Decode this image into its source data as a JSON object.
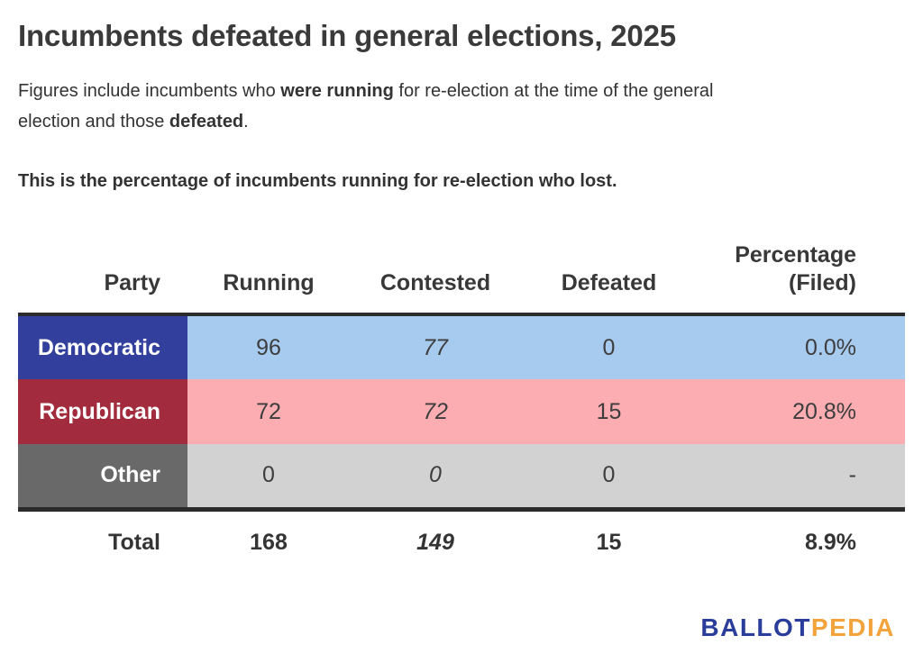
{
  "title": "Incumbents defeated in general elections, 2025",
  "intro": {
    "seg1": "Figures include incumbents who ",
    "bold1": "were running",
    "seg2": " for re-election at the time of the general",
    "seg3": "election and those ",
    "bold2": "defeated",
    "seg4": "."
  },
  "note": "This is the percentage of incumbents running for re-election who lost.",
  "table": {
    "headers": {
      "party": "Party",
      "running": "Running",
      "contested": "Contested",
      "defeated": "Defeated",
      "percentage_line1": "Percentage",
      "percentage_line2": "(Filed)"
    },
    "rows": [
      {
        "party": "Democratic",
        "running": "96",
        "contested": "77",
        "defeated": "0",
        "percentage": "0.0%",
        "label_color": "#333f9c",
        "row_color": "#a6cbef"
      },
      {
        "party": "Republican",
        "running": "72",
        "contested": "72",
        "defeated": "15",
        "percentage": "20.8%",
        "label_color": "#a22c3e",
        "row_color": "#fbadb2"
      },
      {
        "party": "Other",
        "running": "0",
        "contested": "0",
        "defeated": "0",
        "percentage": "-",
        "label_color": "#696969",
        "row_color": "#d2d2d2"
      }
    ],
    "total": {
      "label": "Total",
      "running": "168",
      "contested": "149",
      "defeated": "15",
      "percentage": "8.9%"
    }
  },
  "logo": {
    "part1": "BALLOT",
    "part2": "PEDIA",
    "blue": "#2b3d9b",
    "orange": "#f2a33c"
  },
  "colors": {
    "democratic_label": "#333f9c",
    "democratic_row": "#a6cbef",
    "republican_label": "#a22c3e",
    "republican_row": "#fbadb2",
    "other_label": "#696969",
    "other_row": "#d2d2d2",
    "table_border": "#2b2b2b",
    "text_dark": "#333333"
  },
  "chart_data": {
    "type": "table",
    "title": "Incumbents defeated in general elections, 2025",
    "columns": [
      "Party",
      "Running",
      "Contested",
      "Defeated",
      "Percentage (Filed)"
    ],
    "rows": [
      [
        "Democratic",
        96,
        77,
        0,
        "0.0%"
      ],
      [
        "Republican",
        72,
        72,
        15,
        "20.8%"
      ],
      [
        "Other",
        0,
        0,
        0,
        "-"
      ],
      [
        "Total",
        168,
        149,
        15,
        "8.9%"
      ]
    ]
  }
}
